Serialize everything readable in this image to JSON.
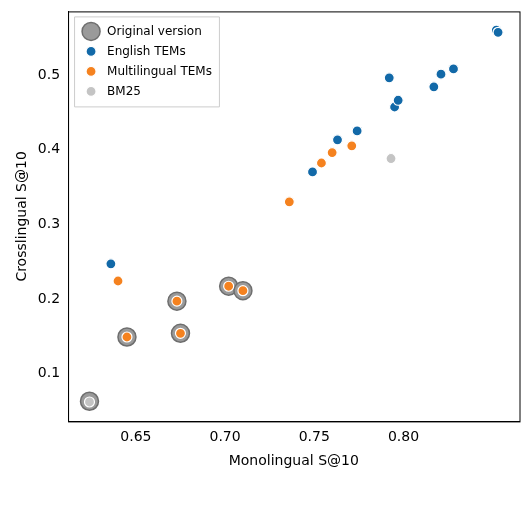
{
  "chart_data": {
    "type": "scatter",
    "x_label": "Monolingual S@10",
    "y_label": "Crosslingual S@10",
    "xlim": [
      0.612,
      0.865
    ],
    "ylim": [
      0.036,
      0.585
    ],
    "xticks": [
      0.65,
      {
        "value": 0.7,
        "label": "0.70"
      },
      0.75,
      {
        "value": 0.8,
        "label": "0.80"
      }
    ],
    "yticks": [
      0.1,
      0.2,
      0.3,
      0.4,
      0.5
    ],
    "grid": false,
    "legend": "upper left",
    "series": [
      {
        "name": "Original version",
        "color": "#9a9a9a",
        "marker": "large_circle",
        "x": [
          0.624,
          0.645,
          0.673,
          0.675,
          0.702,
          0.71
        ],
        "values": [
          0.063,
          0.149,
          0.197,
          0.154,
          0.217,
          0.211
        ]
      },
      {
        "name": "English TEMs",
        "color": "#1269a8",
        "marker": "circle",
        "x": [
          0.636,
          0.749,
          0.763,
          0.774,
          0.792,
          0.795,
          0.797,
          0.817,
          0.821,
          0.828,
          0.852,
          0.853
        ],
        "values": [
          0.247,
          0.37,
          0.413,
          0.425,
          0.496,
          0.457,
          0.466,
          0.484,
          0.501,
          0.508,
          0.56,
          0.557
        ]
      },
      {
        "name": "Multilingual TEMs",
        "color": "#f5821f",
        "marker": "circle",
        "x": [
          0.64,
          0.736,
          0.754,
          0.76,
          0.771,
          0.645,
          0.673,
          0.675,
          0.702,
          0.71
        ],
        "values": [
          0.224,
          0.33,
          0.382,
          0.396,
          0.405,
          0.149,
          0.197,
          0.154,
          0.217,
          0.211
        ]
      },
      {
        "name": "BM25",
        "color": "#c4c4c4",
        "marker": "circle",
        "x": [
          0.793,
          0.624
        ],
        "values": [
          0.388,
          0.062
        ]
      }
    ]
  }
}
